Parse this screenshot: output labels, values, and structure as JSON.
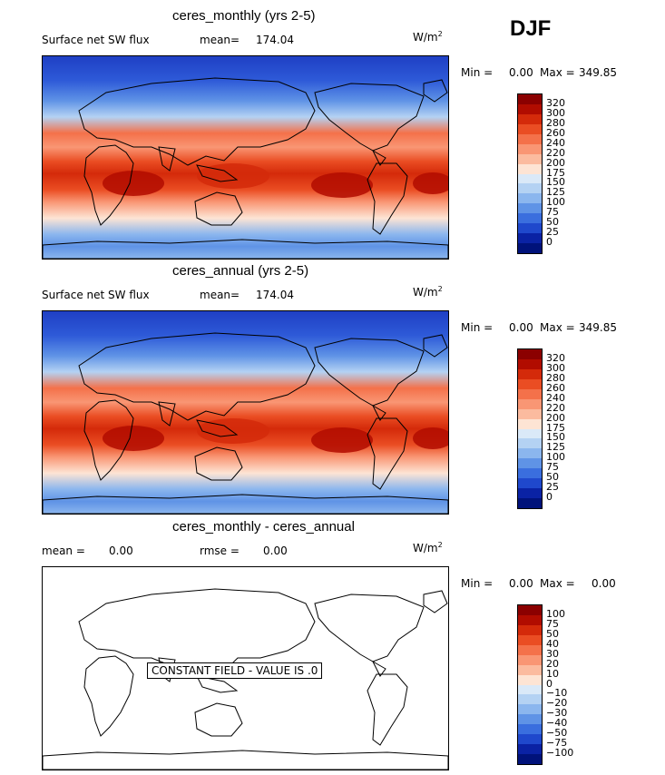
{
  "season": "DJF",
  "panels": [
    {
      "title": "ceres_monthly (yrs 2-5)",
      "variable": "Surface net SW flux",
      "stat1_label": "mean=",
      "stat1_value": "174.04",
      "stat2_label": "",
      "stat2_value": "",
      "units_base": "W/m",
      "units_sup": "2",
      "min_label": "Min =",
      "min_value": "0.00",
      "max_label": "Max =",
      "max_value": "349.85",
      "filled": true,
      "legend": [
        "320",
        "300",
        "280",
        "260",
        "240",
        "220",
        "200",
        "175",
        "150",
        "125",
        "100",
        "75",
        "50",
        "25",
        "0"
      ]
    },
    {
      "title": "ceres_annual (yrs 2-5)",
      "variable": "Surface net SW flux",
      "stat1_label": "mean=",
      "stat1_value": "174.04",
      "stat2_label": "",
      "stat2_value": "",
      "units_base": "W/m",
      "units_sup": "2",
      "min_label": "Min =",
      "min_value": "0.00",
      "max_label": "Max =",
      "max_value": "349.85",
      "filled": true,
      "legend": [
        "320",
        "300",
        "280",
        "260",
        "240",
        "220",
        "200",
        "175",
        "150",
        "125",
        "100",
        "75",
        "50",
        "25",
        "0"
      ]
    },
    {
      "title": "ceres_monthly - ceres_annual",
      "variable": "",
      "stat1_label": "mean =",
      "stat1_value": "0.00",
      "stat2_label": "rmse =",
      "stat2_value": "0.00",
      "units_base": "W/m",
      "units_sup": "2",
      "min_label": "Min =",
      "min_value": "0.00",
      "max_label": "Max =",
      "max_value": "0.00",
      "filled": false,
      "constant_label": "CONSTANT FIELD - VALUE IS .0",
      "legend": [
        "100",
        "75",
        "50",
        "40",
        "30",
        "20",
        "10",
        "0",
        "−10",
        "−20",
        "−30",
        "−40",
        "−50",
        "−75",
        "−100"
      ]
    }
  ],
  "colorbar_colors": [
    "#8b0000",
    "#b10c00",
    "#d42a0a",
    "#ea4d23",
    "#f4714a",
    "#f99674",
    "#fbbb9f",
    "#fde4d4",
    "#dae9f8",
    "#b4d2f3",
    "#8bb6ee",
    "#5f93e6",
    "#3a6ede",
    "#1f48cc",
    "#0a22a4",
    "#00127a"
  ]
}
